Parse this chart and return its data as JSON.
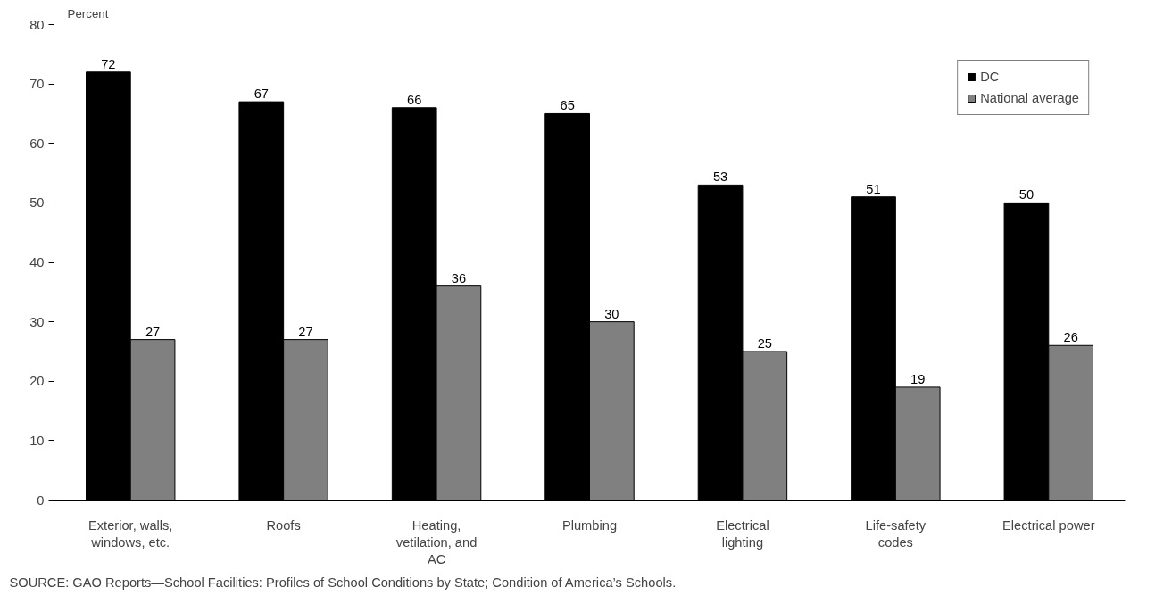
{
  "chart_data": {
    "type": "bar",
    "ylabel": "Percent",
    "categories": [
      "Exterior, walls, windows, etc.",
      "Roofs",
      "Heating, vetilation, and AC",
      "Plumbing",
      "Electrical lighting",
      "Life-safety codes",
      "Electrical power"
    ],
    "series": [
      {
        "name": "DC",
        "color": "#000000",
        "values": [
          72,
          67,
          66,
          65,
          53,
          51,
          50
        ]
      },
      {
        "name": "National average",
        "color": "#808080",
        "values": [
          27,
          27,
          36,
          30,
          25,
          19,
          26
        ]
      }
    ],
    "ylim": [
      0,
      80
    ],
    "yticks": [
      0,
      10,
      20,
      30,
      40,
      50,
      60,
      70,
      80
    ],
    "data_labels": true,
    "grid": false,
    "legend": "top right",
    "annotations": [
      "SOURCE:  GAO Reports—School Facilities:  Profiles of School Conditions by State; Condition of America’s Schools."
    ]
  }
}
